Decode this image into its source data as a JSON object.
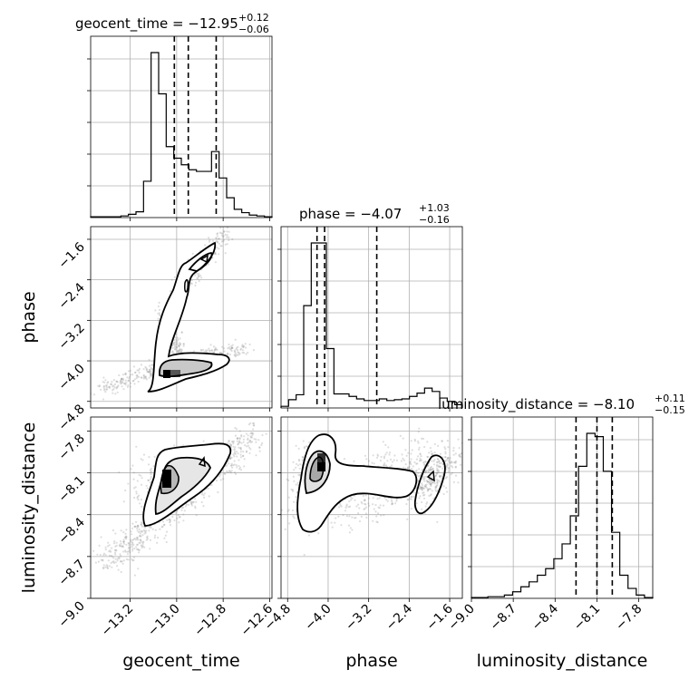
{
  "chart_data": {
    "type": "corner",
    "parameters": [
      {
        "name": "geocent_time",
        "axis_label": "geocent_time",
        "title_main": "geocent_time = −12.95",
        "title_plus": "+0.12",
        "title_minus": "−0.06",
        "median": -12.95,
        "quantiles": [
          -13.01,
          -12.95,
          -12.83
        ],
        "range": [
          -13.37,
          -12.59
        ],
        "ticks": [
          -13.2,
          -13.0,
          -12.8,
          -12.6
        ],
        "tick_labels": [
          "−13.2",
          "−13.0",
          "−12.8",
          "−12.6"
        ],
        "hist": [
          0.005,
          0.005,
          0.005,
          0.005,
          0.01,
          0.02,
          0.035,
          0.22,
          1.0,
          0.75,
          0.43,
          0.36,
          0.32,
          0.29,
          0.28,
          0.28,
          0.4,
          0.24,
          0.12,
          0.05,
          0.03,
          0.015,
          0.01,
          0.005
        ]
      },
      {
        "name": "phase",
        "axis_label": "phase",
        "title_main": "phase = −4.07",
        "title_plus": "+1.03",
        "title_minus": "−0.16",
        "median": -4.07,
        "quantiles": [
          -4.22,
          -4.07,
          -3.04
        ],
        "range": [
          -4.93,
          -1.35
        ],
        "ticks": [
          -4.8,
          -4.0,
          -3.2,
          -2.4,
          -1.6
        ],
        "tick_labels": [
          "−4.8",
          "−4.0",
          "−3.2",
          "−2.4",
          "−1.6"
        ],
        "hist": [
          0.01,
          0.05,
          0.08,
          0.62,
          1.0,
          1.0,
          0.36,
          0.085,
          0.085,
          0.07,
          0.055,
          0.045,
          0.045,
          0.055,
          0.045,
          0.05,
          0.055,
          0.07,
          0.09,
          0.12,
          0.1,
          0.06,
          0.04,
          0.02
        ]
      },
      {
        "name": "luminosity_distance",
        "axis_label": "luminosity_distance",
        "title_main": "luminosity_distance = −8.10",
        "title_plus": "+0.11",
        "title_minus": "−0.15",
        "median": -8.1,
        "quantiles": [
          -8.25,
          -8.1,
          -7.99
        ],
        "range": [
          -9.0,
          -7.7
        ],
        "ticks": [
          -9.0,
          -8.7,
          -8.4,
          -8.1,
          -7.8
        ],
        "tick_labels": [
          "−9.0",
          "−8.7",
          "−8.4",
          "−8.1",
          "−7.8"
        ],
        "hist": [
          0.005,
          0.005,
          0.01,
          0.01,
          0.02,
          0.04,
          0.07,
          0.1,
          0.14,
          0.18,
          0.24,
          0.33,
          0.5,
          0.8,
          1.0,
          0.98,
          0.77,
          0.4,
          0.14,
          0.06,
          0.02,
          0.005
        ]
      }
    ],
    "contour_style": "filled greyscale density with black 1-sigma/2-sigma contours and grey scatter of samples",
    "grid": true
  }
}
